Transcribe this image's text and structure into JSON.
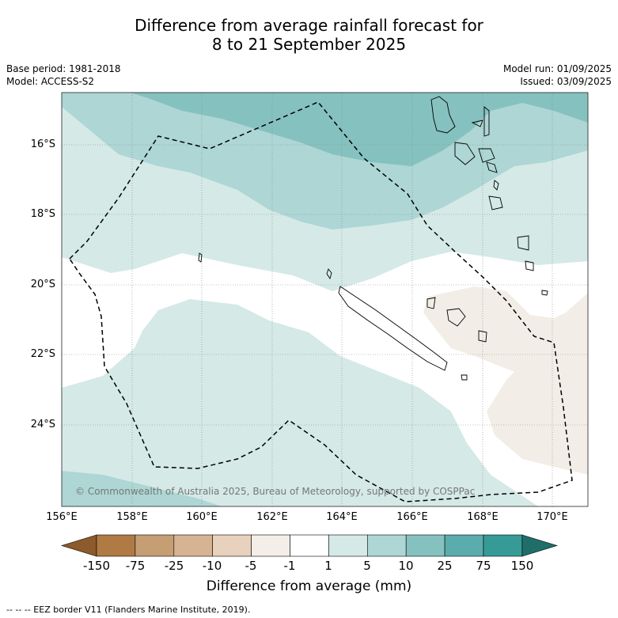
{
  "title": {
    "line1": "Difference from average rainfall forecast for",
    "line2": "8 to 21 September 2025"
  },
  "meta": {
    "base_period": "Base period: 1981-2018",
    "model": "Model: ACCESS-S2",
    "model_run": "Model run: 01/09/2025",
    "issued": "Issued: 03/09/2025"
  },
  "map": {
    "lat_labels": [
      "16°S",
      "18°S",
      "20°S",
      "22°S",
      "24°S"
    ],
    "lon_labels": [
      "156°E",
      "158°E",
      "160°E",
      "162°E",
      "164°E",
      "166°E",
      "168°E",
      "170°E"
    ],
    "copyright": "© Commonwealth of Australia 2025, Bureau of Meteorology, supported by COSPPac",
    "region_colors": {
      "class_1_5": "#d5e9e7",
      "class_5_10": "#add6d5",
      "class_10_25": "#85c1bf",
      "class_neg5_neg1": "#f2ede6"
    }
  },
  "colorbar": {
    "tick_labels": [
      "-150",
      "-75",
      "-25",
      "-10",
      "-5",
      "-1",
      "1",
      "5",
      "10",
      "25",
      "75",
      "150"
    ],
    "colors": [
      "#8c5a2b",
      "#b07a44",
      "#c69e74",
      "#d6b393",
      "#e8d1bd",
      "#f3eee7",
      "#ffffff",
      "#d5e9e7",
      "#add6d5",
      "#85c1bf",
      "#5aadac",
      "#369b97",
      "#1f6e6a"
    ],
    "title": "Difference from average (mm)"
  },
  "footer": "--  --  -- EEZ border V11 (Flanders Marine Institute, 2019)."
}
